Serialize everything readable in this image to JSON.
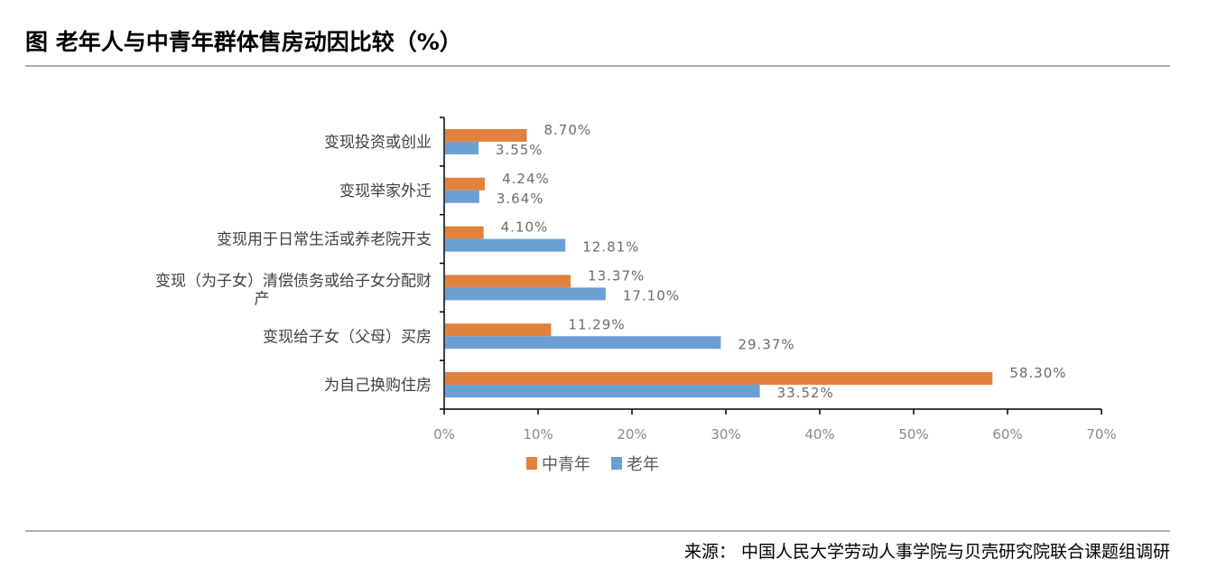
{
  "chart_data": {
    "type": "bar",
    "orientation": "horizontal",
    "title": "图  老年人与中青年群体售房动因比较（%）",
    "categories": [
      "变现投资或创业",
      "变现举家外迁",
      "变现用于日常生活或养老院开支",
      "变现（为子女）清偿债务或给子女分配财产",
      "变现给子女（父母）买房",
      "为自己换购住房"
    ],
    "series": [
      {
        "name": "中青年",
        "color": "#E0823E",
        "values": [
          8.7,
          4.24,
          4.1,
          13.37,
          11.29,
          58.3
        ],
        "labels": [
          "8.70%",
          "4.24%",
          "4.10%",
          "13.37%",
          "11.29%",
          "58.30%"
        ]
      },
      {
        "name": "老年",
        "color": "#6A9FD4",
        "values": [
          3.55,
          3.64,
          12.81,
          17.1,
          29.37,
          33.52
        ],
        "labels": [
          "3.55%",
          "3.64%",
          "12.81%",
          "17.10%",
          "29.37%",
          "33.52%"
        ]
      }
    ],
    "xlim": [
      0,
      70
    ],
    "xticks": [
      "0%",
      "10%",
      "20%",
      "30%",
      "40%",
      "50%",
      "60%",
      "70%"
    ],
    "grid": false,
    "legend": "bottom"
  },
  "source": "来源：  中国人民大学劳动人事学院与贝壳研究院联合课题组调研"
}
